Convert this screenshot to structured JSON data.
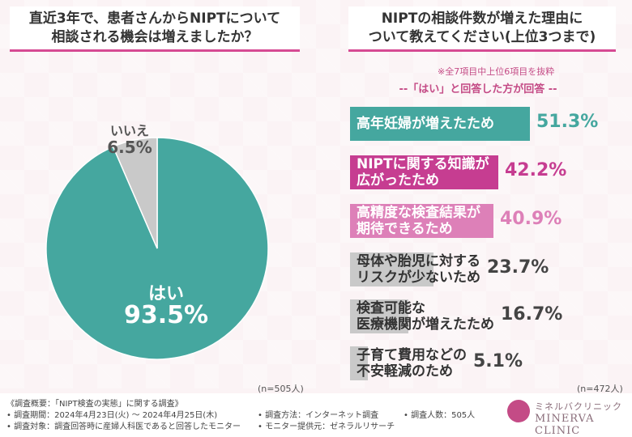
{
  "left_title": {
    "line1": "直近3年で、患者さんからNIPTについて",
    "line2": "相談される機会は増えましたか？"
  },
  "right_title": {
    "line1": "NIPTの相談件数が増えた理由に",
    "line2": "ついて教えてください(上位3つまで)"
  },
  "note": "※全7項目中上位6項目を抜粋",
  "subnote": "--「はい」と回答した方が回答 --",
  "n_left": "(n=505人)",
  "n_right": "(n=472人)",
  "colors": {
    "teal": "#45a79f",
    "magenta": "#c63d91",
    "pink": "#dd80b8",
    "gray": "#c9c9c9",
    "accent": "#d64a93"
  },
  "chart_data": [
    {
      "type": "pie",
      "labels": [
        "はい",
        "いいえ"
      ],
      "values": [
        93.5,
        6.5
      ],
      "value_labels": [
        "93.5%",
        "6.5%"
      ]
    },
    {
      "type": "bar",
      "orientation": "horizontal",
      "categories": [
        [
          "高年妊婦が増えたため"
        ],
        [
          "NIPTに関する知識が",
          "広がったため"
        ],
        [
          "高精度な検査結果が",
          "期待できるため"
        ],
        [
          "母体や胎児に対する",
          "リスクが少ないため"
        ],
        [
          "検査可能な",
          "医療機関が増えたため"
        ],
        [
          "子育て費用などの",
          "不安軽減のため"
        ]
      ],
      "values": [
        51.3,
        42.2,
        40.9,
        23.7,
        16.7,
        5.1
      ],
      "value_labels": [
        "51.3%",
        "42.2%",
        "40.9%",
        "23.7%",
        "16.7%",
        "5.1%"
      ]
    }
  ],
  "footer": {
    "overview": "《調査概要：「NIPT検査の実態」に関する調査》",
    "period": "• 調査期間：2024年4月23日(火) ～ 2024年4月25日(木)",
    "target": "• 調査対象：調査回答時に産婦人科医であると回答したモニター",
    "method": "• 調査方法：インターネット調査",
    "provider": "• モニター提供元：ゼネラルリサーチ",
    "count": "• 調査人数：505人"
  },
  "logo": {
    "jp": "ミネルバクリニック",
    "en": "MINERVA CLINIC"
  }
}
